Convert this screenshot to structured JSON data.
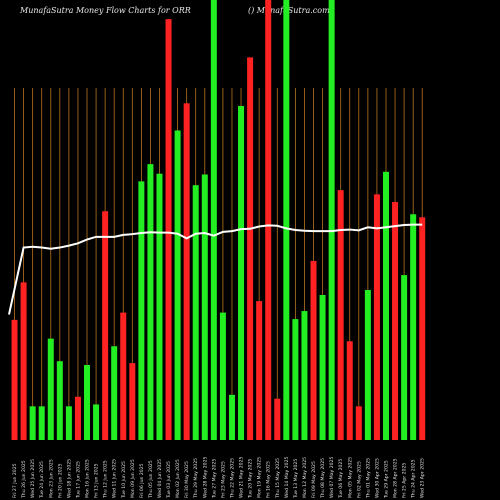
{
  "header": {
    "left": "MunafaSutra  Money Flow  Charts for ORR",
    "right": "() MunafaSutra.com"
  },
  "chart_data": {
    "type": "bar",
    "ylim": [
      0,
      100
    ],
    "grid": true,
    "categories": [
      "Fri 27 Jun 2025",
      "Thu 26 Jun 2025",
      "Wed 25 Jun 2025",
      "Tue 24 Jun 2025",
      "Mon 23 Jun 2025",
      "Fri 20 Jun 2025",
      "Wed 18 Jun 2025",
      "Tue 17 Jun 2025",
      "Mon 16 Jun 2025",
      "Fri 13 Jun 2025",
      "Thu 12 Jun 2025",
      "Wed 11 Jun 2025",
      "Tue 10 Jun 2025",
      "Mon 09 Jun 2025",
      "Fri 06 Jun 2025",
      "Thu 05 Jun 2025",
      "Wed 04 Jun 2025",
      "Tue 03 Jun 2025",
      "Mon 02 Jun 2025",
      "Fri 30 May 2025",
      "Thu 29 May 2025",
      "Wed 28 May 2025",
      "Tue 27 May 2025",
      "Fri 23 May 2025",
      "Thu 22 May 2025",
      "Wed 21 May 2025",
      "Tue 20 May 2025",
      "Mon 19 May 2025",
      "Fri 16 May 2025",
      "Thu 15 May 2025",
      "Wed 14 May 2025",
      "Tue 13 May 2025",
      "Mon 12 May 2025",
      "Fri 09 May 2025",
      "Thu 08 May 2025",
      "Wed 07 May 2025",
      "Tue 06 May 2025",
      "Mon 05 May 2025",
      "Fri 02 May 2025",
      "Thu 01 May 2025",
      "Wed 30 Apr 2025",
      "Tue 29 Apr 2025",
      "Mon 28 Apr 2025",
      "Fri 25 Apr 2025",
      "Thu 24 Apr 2025",
      "Wed 23 Apr 2025"
    ],
    "flows": [
      "red",
      "red",
      "green",
      "green",
      "green",
      "green",
      "green",
      "red",
      "green",
      "green",
      "red",
      "green",
      "red",
      "red",
      "green",
      "green",
      "green",
      "red",
      "green",
      "red",
      "green",
      "green",
      "green",
      "green",
      "green",
      "green",
      "red",
      "red",
      "red",
      "red",
      "green",
      "green",
      "green",
      "red",
      "green",
      "green",
      "red",
      "red",
      "red",
      "green",
      "red",
      "green",
      "red",
      "green",
      "green",
      "red"
    ],
    "colors": {
      "green": "#22ee22",
      "red": "#ff2222",
      "grid": "#b8761e",
      "line": "#ffffff",
      "background": "#000000"
    },
    "bars": [
      31.4,
      41.2,
      8.8,
      8.8,
      26.5,
      20.6,
      8.8,
      11.3,
      19.6,
      9.3,
      59.8,
      24.5,
      33.3,
      20.1,
      67.6,
      72.1,
      69.6,
      110.0,
      80.9,
      88.0,
      66.6,
      69.4,
      115.0,
      33.3,
      11.8,
      87.3,
      100.0,
      36.3,
      115.0,
      10.8,
      115.0,
      31.6,
      33.7,
      46.8,
      37.9,
      115.0,
      65.3,
      25.8,
      8.8,
      39.2,
      64.2,
      70.1,
      62.2,
      43.1,
      59.0,
      58.2
    ],
    "money_flow_line": [
      32.8,
      50.3,
      50.5,
      50.3,
      50.0,
      50.3,
      50.8,
      51.4,
      52.4,
      53.1,
      53.1,
      53.1,
      53.6,
      53.8,
      54.1,
      54.3,
      54.2,
      54.2,
      53.9,
      52.7,
      53.9,
      54.1,
      53.4,
      54.4,
      54.6,
      55.1,
      55.2,
      55.8,
      56.1,
      56.0,
      55.3,
      54.9,
      54.7,
      54.6,
      54.6,
      54.6,
      54.9,
      55.0,
      54.8,
      55.6,
      55.3,
      55.6,
      55.9,
      56.2,
      56.3,
      56.3
    ]
  }
}
